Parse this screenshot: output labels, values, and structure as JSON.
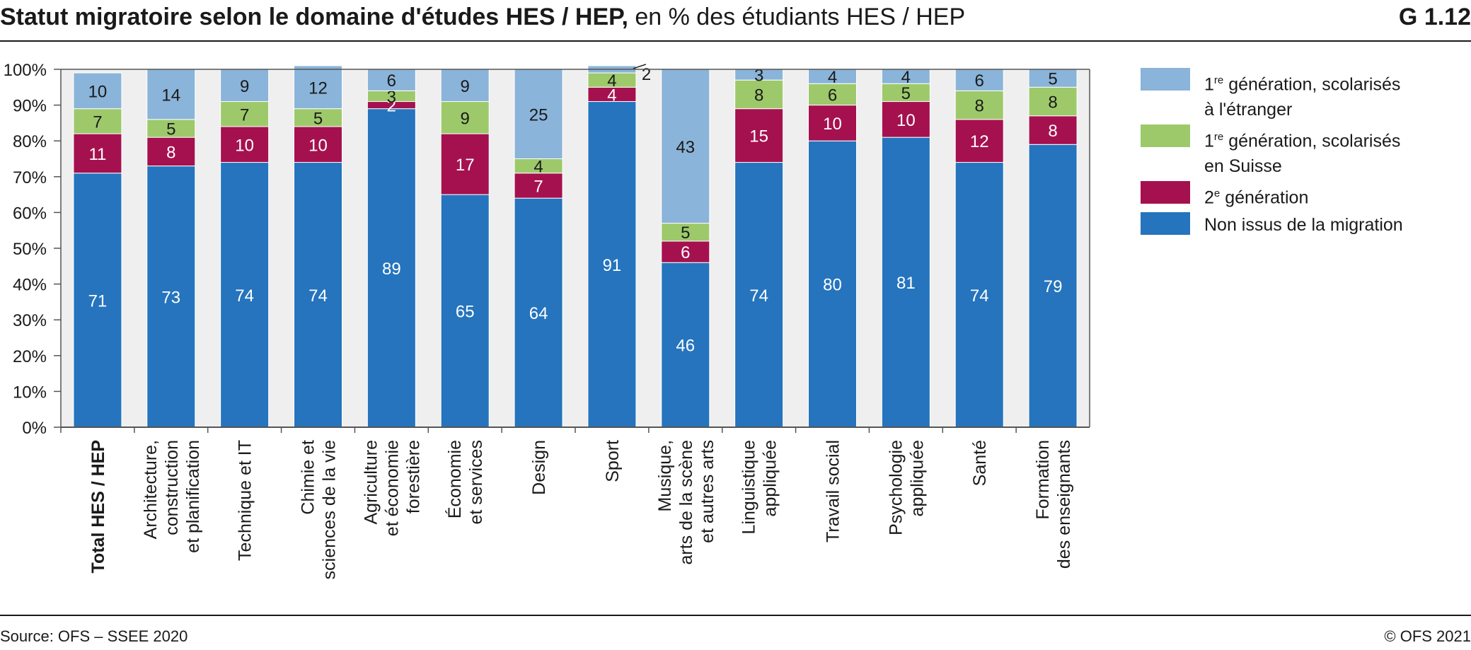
{
  "header": {
    "title_bold": "Statut migratoire selon le domaine d'études HES / HEP,",
    "title_rest": " en % des étudiants HES / HEP",
    "figure_id": "G 1.12"
  },
  "footer": {
    "source": "Source: OFS – SSEE 2020",
    "copyright": "© OFS 2021"
  },
  "legend": [
    {
      "sup_prefix": "1",
      "sup": "re",
      "text": " génération, scolarisés",
      "text2": "à l'étranger",
      "color": "#8ab4d9"
    },
    {
      "sup_prefix": "1",
      "sup": "re",
      "text": " génération, scolarisés",
      "text2": "en Suisse",
      "color": "#9dc96b"
    },
    {
      "sup_prefix": "2",
      "sup": "e",
      "text": " génération",
      "text2": "",
      "color": "#a5114f"
    },
    {
      "sup_prefix": "",
      "sup": "",
      "text": "Non issus de la migration",
      "text2": "",
      "color": "#2574bd"
    }
  ],
  "chart_data": {
    "type": "bar",
    "stacked": true,
    "percent_axis": true,
    "ylim": [
      0,
      100
    ],
    "yticks": [
      "0%",
      "10%",
      "20%",
      "30%",
      "40%",
      "50%",
      "60%",
      "70%",
      "80%",
      "90%",
      "100%"
    ],
    "grid": false,
    "legend_position": "right",
    "categories": [
      {
        "lines": [
          "Total HES / HEP"
        ],
        "bold": true
      },
      {
        "lines": [
          "Architecture,",
          "construction",
          "et planification"
        ],
        "bold": false
      },
      {
        "lines": [
          "Technique et IT"
        ],
        "bold": false
      },
      {
        "lines": [
          "Chimie et",
          "sciences de la vie"
        ],
        "bold": false
      },
      {
        "lines": [
          "Agriculture",
          "et économie",
          "forestière"
        ],
        "bold": false
      },
      {
        "lines": [
          "Économie",
          "et services"
        ],
        "bold": false
      },
      {
        "lines": [
          "Design"
        ],
        "bold": false
      },
      {
        "lines": [
          "Sport"
        ],
        "bold": false
      },
      {
        "lines": [
          "Musique,",
          "arts de la scène",
          "et autres arts"
        ],
        "bold": false
      },
      {
        "lines": [
          "Linguistique",
          "appliquée"
        ],
        "bold": false
      },
      {
        "lines": [
          "Travail social"
        ],
        "bold": false
      },
      {
        "lines": [
          "Psychologie",
          "appliquée"
        ],
        "bold": false
      },
      {
        "lines": [
          "Santé"
        ],
        "bold": false
      },
      {
        "lines": [
          "Formation",
          "des enseignants"
        ],
        "bold": false
      }
    ],
    "series": [
      {
        "name": "Non issus de la migration",
        "color": "#2574bd",
        "label_color": "#ffffff",
        "values": [
          71,
          73,
          74,
          74,
          89,
          65,
          64,
          91,
          46,
          74,
          80,
          81,
          74,
          79
        ]
      },
      {
        "name": "2e génération",
        "color": "#a5114f",
        "label_color": "#ffffff",
        "values": [
          11,
          8,
          10,
          10,
          2,
          17,
          7,
          4,
          6,
          15,
          10,
          10,
          12,
          8
        ]
      },
      {
        "name": "1re génération, scolarisés en Suisse",
        "color": "#9dc96b",
        "label_color": "#1a1a1a",
        "values": [
          7,
          5,
          7,
          5,
          3,
          9,
          4,
          4,
          5,
          8,
          6,
          5,
          8,
          8
        ]
      },
      {
        "name": "1re génération, scolarisés à l'étranger",
        "color": "#8ab4d9",
        "label_color": "#1a1a1a",
        "values": [
          10,
          14,
          9,
          12,
          6,
          9,
          25,
          2,
          43,
          3,
          4,
          4,
          6,
          5
        ]
      }
    ],
    "outside_labels": [
      {
        "category": 7,
        "series": 3
      }
    ],
    "colors": {
      "plot_bg": "#efefef",
      "axis": "#555555",
      "gridline": "#ffffff"
    }
  }
}
